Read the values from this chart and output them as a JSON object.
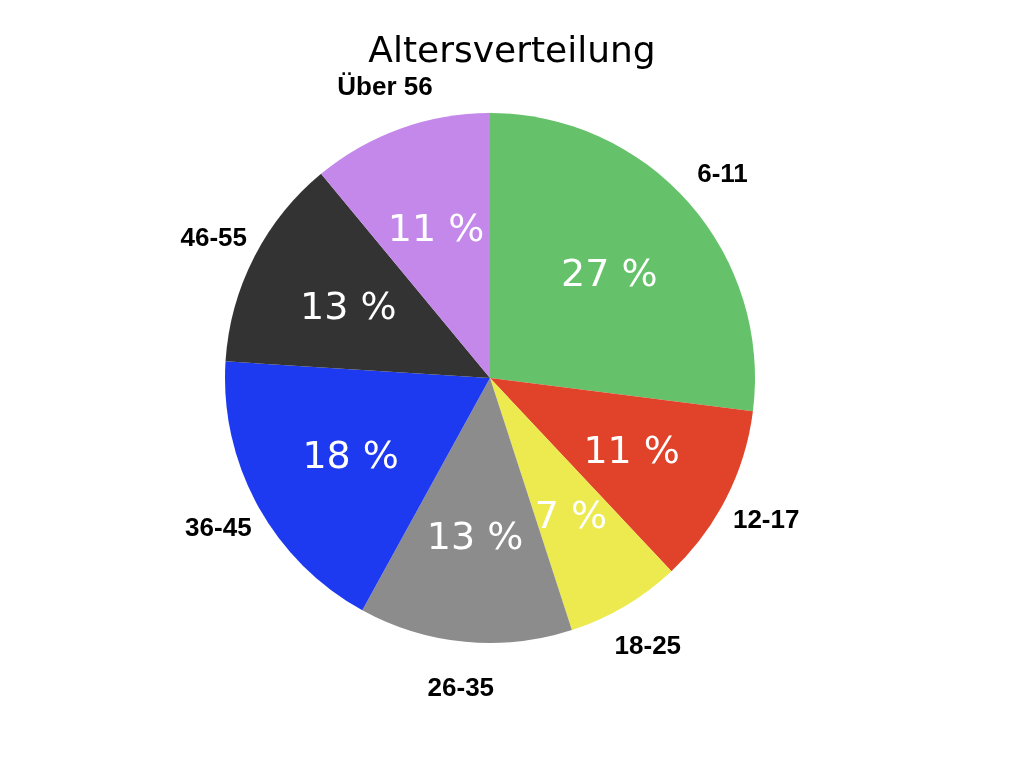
{
  "chart_data": {
    "type": "pie",
    "title": "Altersverteilung",
    "categories": [
      "6-11",
      "12-17",
      "18-25",
      "26-35",
      "36-45",
      "46-55",
      "Über 56"
    ],
    "values": [
      27,
      11,
      7,
      13,
      18,
      13,
      11
    ],
    "value_labels": [
      "27 %",
      "11 %",
      "7 %",
      "13 %",
      "18 %",
      "13 %",
      "11 %"
    ],
    "colors": [
      "#66c26a",
      "#e0432a",
      "#ecea4f",
      "#8c8c8c",
      "#1e3af0",
      "#333333",
      "#c487ea"
    ],
    "legend": false
  }
}
